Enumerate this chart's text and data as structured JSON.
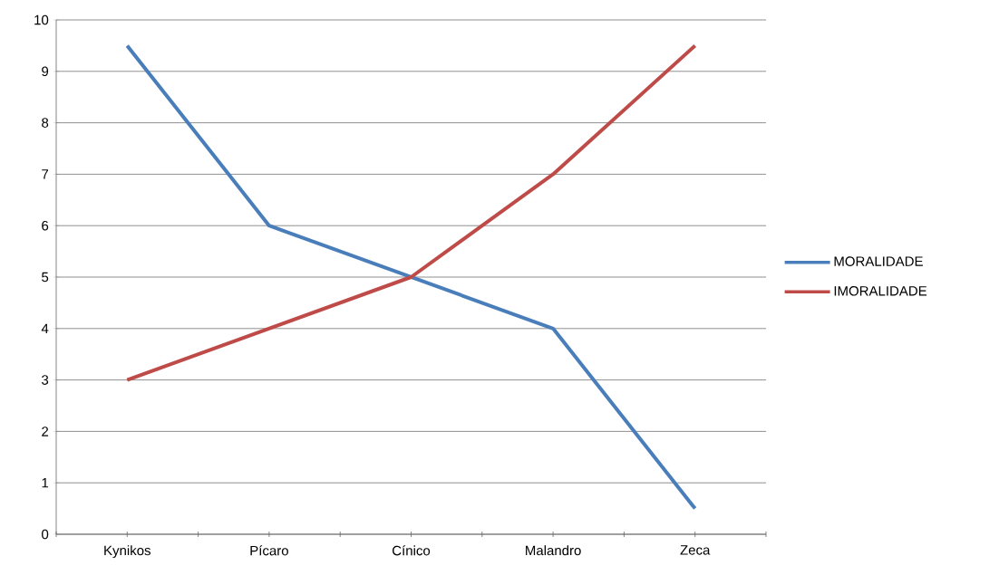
{
  "chart_data": {
    "type": "line",
    "categories": [
      "Kynikos",
      "Pícaro",
      "Cínico",
      "Malandro",
      "Zeca"
    ],
    "series": [
      {
        "name": "MORALIDADE",
        "color": "#4a7ebb",
        "values": [
          9.5,
          6,
          5,
          4,
          0.5
        ]
      },
      {
        "name": "IMORALIDADE",
        "color": "#be4b48",
        "values": [
          3,
          4,
          5,
          7,
          9.5
        ]
      }
    ],
    "ylim": [
      0,
      10
    ],
    "yticks": [
      0,
      1,
      2,
      3,
      4,
      5,
      6,
      7,
      8,
      9,
      10
    ],
    "grid": "y",
    "legend": "right",
    "marker": "none",
    "line_style": "solid"
  }
}
